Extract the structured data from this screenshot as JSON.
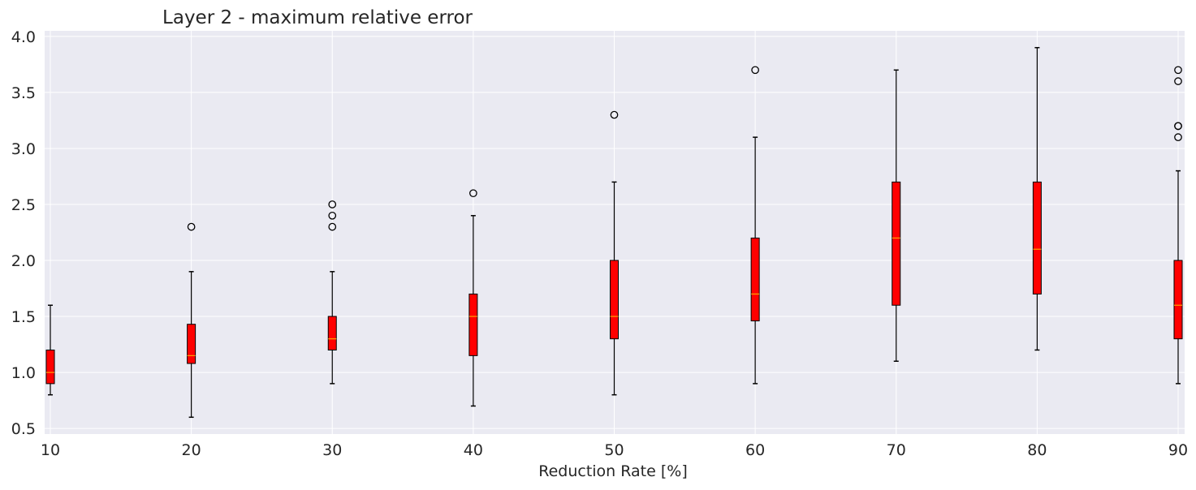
{
  "chart_data": {
    "type": "box",
    "title": "Layer 2 - maximum relative error",
    "xlabel": "Reduction Rate [%]",
    "ylabel": "",
    "categories": [
      "10",
      "20",
      "30",
      "40",
      "50",
      "60",
      "70",
      "80",
      "90"
    ],
    "x_ticks": [
      "10",
      "20",
      "30",
      "40",
      "50",
      "60",
      "70",
      "80",
      "90"
    ],
    "y_ticks": [
      "0.5",
      "1.0",
      "1.5",
      "2.0",
      "2.5",
      "3.0",
      "3.5",
      "4.0"
    ],
    "ylim": [
      0.45,
      4.05
    ],
    "grid": true,
    "legend": "none",
    "colors": {
      "background": "#eaeaf2",
      "grid": "#ffffff",
      "box_fill": "#ff0000",
      "box_edge": "#000000",
      "median": "#ffa500",
      "whisker": "#000000",
      "outlier": "#000000"
    },
    "boxes": [
      {
        "category": "10",
        "whisker_low": 0.8,
        "q1": 0.9,
        "median": 1.0,
        "q3": 1.2,
        "whisker_high": 1.6,
        "outliers": []
      },
      {
        "category": "20",
        "whisker_low": 0.6,
        "q1": 1.08,
        "median": 1.15,
        "q3": 1.43,
        "whisker_high": 1.9,
        "outliers": [
          2.3
        ]
      },
      {
        "category": "30",
        "whisker_low": 0.9,
        "q1": 1.2,
        "median": 1.3,
        "q3": 1.5,
        "whisker_high": 1.9,
        "outliers": [
          2.3,
          2.4,
          2.5
        ]
      },
      {
        "category": "40",
        "whisker_low": 0.7,
        "q1": 1.15,
        "median": 1.5,
        "q3": 1.7,
        "whisker_high": 2.4,
        "outliers": [
          2.6
        ]
      },
      {
        "category": "50",
        "whisker_low": 0.8,
        "q1": 1.3,
        "median": 1.5,
        "q3": 2.0,
        "whisker_high": 2.7,
        "outliers": [
          3.3
        ]
      },
      {
        "category": "60",
        "whisker_low": 0.9,
        "q1": 1.46,
        "median": 1.7,
        "q3": 2.2,
        "whisker_high": 3.1,
        "outliers": [
          3.7
        ]
      },
      {
        "category": "70",
        "whisker_low": 1.1,
        "q1": 1.6,
        "median": 2.2,
        "q3": 2.7,
        "whisker_high": 3.7,
        "outliers": []
      },
      {
        "category": "80",
        "whisker_low": 1.2,
        "q1": 1.7,
        "median": 2.1,
        "q3": 2.7,
        "whisker_high": 3.9,
        "outliers": []
      },
      {
        "category": "90",
        "whisker_low": 0.9,
        "q1": 1.3,
        "median": 1.6,
        "q3": 2.0,
        "whisker_high": 2.8,
        "outliers": [
          3.1,
          3.2,
          3.2,
          3.6,
          3.7
        ]
      }
    ]
  }
}
